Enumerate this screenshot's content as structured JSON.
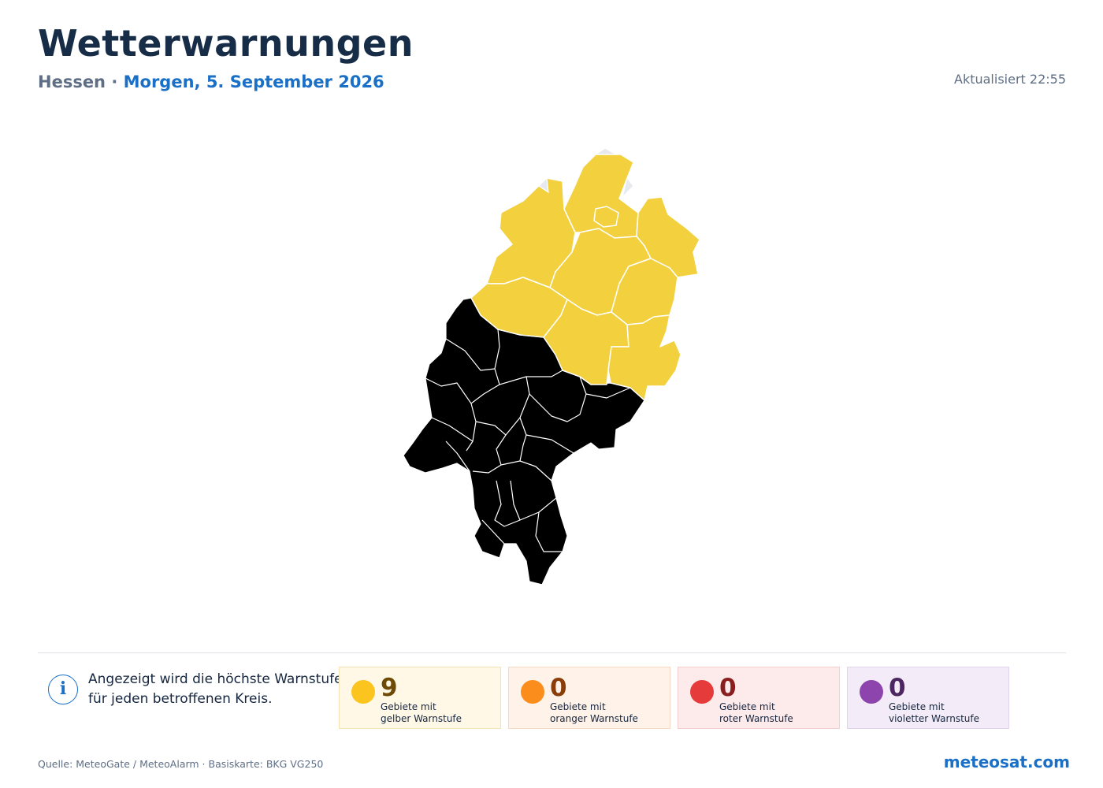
{
  "header": {
    "title": "Wetterwarnungen",
    "region": "Hessen",
    "separator": "·",
    "date": "Morgen, 5. September 2026",
    "updated": "Aktualisiert 22:55"
  },
  "map": {
    "colors": {
      "warning_yellow": "#f2d03e",
      "no_warning": "#e6e9ee",
      "border": "#ffffff"
    }
  },
  "info": {
    "icon": "info-icon",
    "line1": "Angezeigt wird die höchste Warnstufe",
    "line2": "für jeden betroffenen Kreis."
  },
  "legend": [
    {
      "level": "yellow",
      "color": "#fcc41f",
      "text_color": "#6e4a06",
      "count": "9",
      "label_line1": "Gebiete mit",
      "label_line2": "gelber Warnstufe"
    },
    {
      "level": "orange",
      "color": "#fb8d1d",
      "text_color": "#8a3d08",
      "count": "0",
      "label_line1": "Gebiete mit",
      "label_line2": "oranger Warnstufe"
    },
    {
      "level": "red",
      "color": "#e63b3b",
      "text_color": "#8a1e1e",
      "count": "0",
      "label_line1": "Gebiete mit",
      "label_line2": "roter Warnstufe"
    },
    {
      "level": "violet",
      "color": "#8e44ad",
      "text_color": "#4c2660",
      "count": "0",
      "label_line1": "Gebiete mit",
      "label_line2": "violetter Warnstufe"
    }
  ],
  "footer": {
    "source": "Quelle: MeteoGate / MeteoAlarm · Basiskarte: BKG VG250",
    "brand": "meteosat.com"
  }
}
